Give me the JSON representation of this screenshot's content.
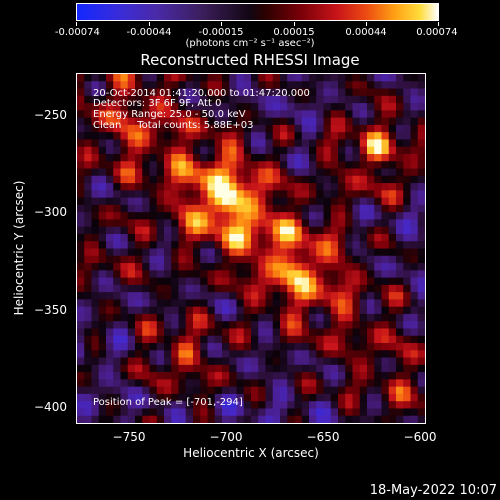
{
  "colorbar": {
    "tick_labels": [
      "-0.00074",
      "-0.00044",
      "-0.00015",
      "0.00015",
      "0.00044",
      "0.00074"
    ],
    "unit_label": "(photons cm⁻² s⁻¹ asec⁻²)"
  },
  "chart_data": {
    "type": "heatmap",
    "title": "Reconstructed RHESSI Image",
    "xlabel": "Heliocentric X (arcsec)",
    "ylabel": "Heliocentric Y (arcsec)",
    "xlim": [
      -777,
      -597
    ],
    "ylim": [
      -408,
      -228
    ],
    "x_ticks": [
      -750,
      -700,
      -650,
      -600
    ],
    "y_ticks": [
      -250,
      -300,
      -350,
      -400
    ],
    "x_tick_labels": [
      "−750",
      "−700",
      "−650",
      "−600"
    ],
    "y_tick_labels": [
      "−250",
      "−300",
      "−350",
      "−400"
    ],
    "colorbar_range": [
      -0.00074,
      0.00074
    ],
    "bright_regions": [
      {
        "x": -701,
        "y": -294,
        "level": 1.0
      },
      {
        "x": -622,
        "y": -268,
        "level": 0.85
      },
      {
        "x": -663,
        "y": -328,
        "level": 0.7
      },
      {
        "x": -722,
        "y": -373,
        "level": 0.65
      },
      {
        "x": -752,
        "y": -262,
        "level": 0.4
      },
      {
        "x": -758,
        "y": -322,
        "level": 0.35
      }
    ],
    "peak": {
      "x": -701,
      "y": -294
    }
  },
  "annotations": {
    "time": "20-Oct-2014 01:41:20.000 to 01:47:20.000",
    "detectors": "Detectors: 3F 6F 9F, Att 0",
    "energy": "Energy Range: 25.0 - 50.0 keV",
    "clean": "Clean     Total counts: 5.88E+03",
    "peak": "Position of Peak = [-701,-294]"
  },
  "footer": "18-May-2022 10:07"
}
